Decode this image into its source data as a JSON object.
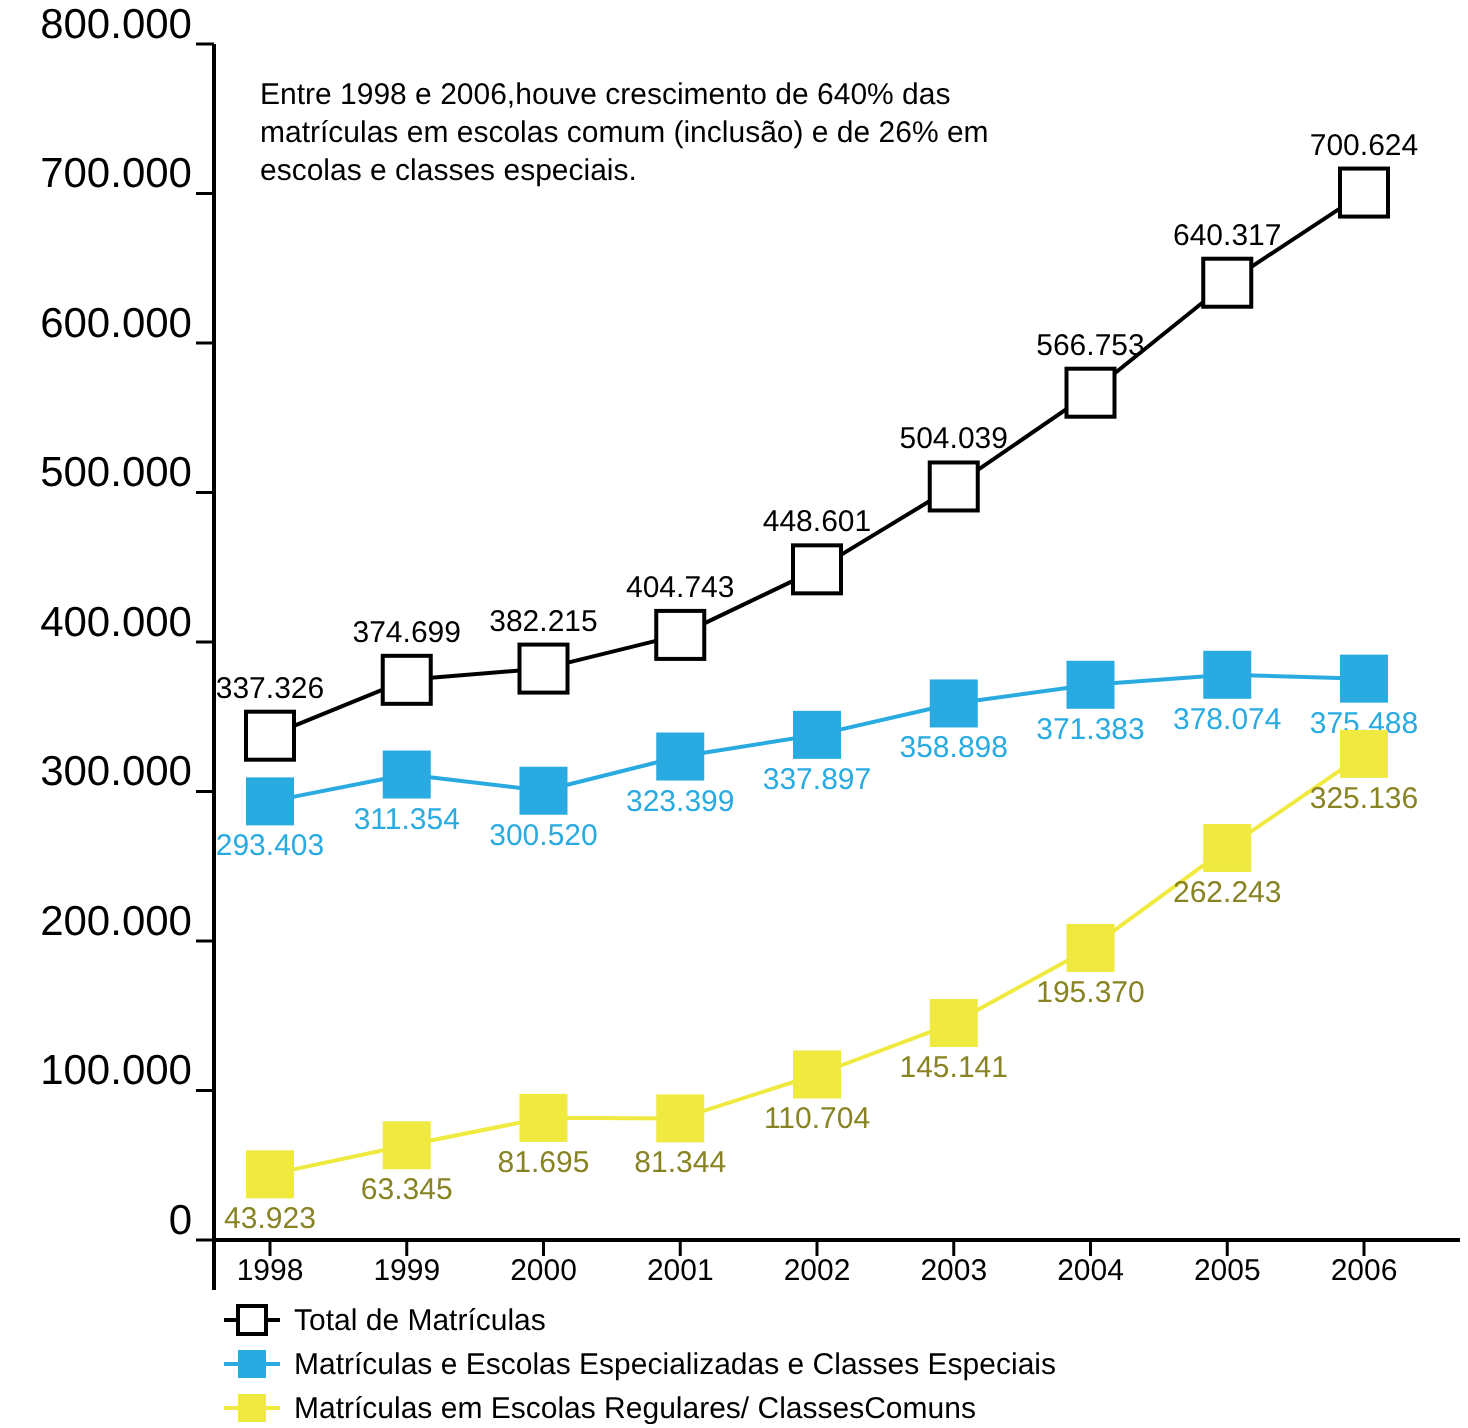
{
  "chart_data": {
    "type": "line",
    "categories": [
      "1998",
      "1999",
      "2000",
      "2001",
      "2002",
      "2003",
      "2004",
      "2005",
      "2006"
    ],
    "ylim": [
      0,
      800000
    ],
    "yticks": [
      {
        "value": 0,
        "label": "0"
      },
      {
        "value": 100000,
        "label": "100.000"
      },
      {
        "value": 200000,
        "label": "200.000"
      },
      {
        "value": 300000,
        "label": "300.000"
      },
      {
        "value": 400000,
        "label": "400.000"
      },
      {
        "value": 500000,
        "label": "500.000"
      },
      {
        "value": 600000,
        "label": "600.000"
      },
      {
        "value": 700000,
        "label": "700.000"
      },
      {
        "value": 800000,
        "label": "800.000"
      }
    ],
    "marker": "square",
    "legend": "bottom",
    "grid": false,
    "annotations": [
      "Entre 1998 e 2006,houve crescimento de 640% das matrículas em escolas comum (inclusão) e de 26% em escolas e classes especiais."
    ],
    "series": [
      {
        "name": "Total de Matrículas",
        "color": "#000000",
        "values": [
          337326,
          374699,
          382215,
          404743,
          448601,
          504039,
          566753,
          640317,
          700624
        ],
        "value_labels": [
          "337.326",
          "374.699",
          "382.215",
          "404.743",
          "448.601",
          "504.039",
          "566.753",
          "640.317",
          "700.624"
        ]
      },
      {
        "name": "Matrículas e Escolas Especializadas e Classes Especiais",
        "color": "#29abe2",
        "values": [
          293403,
          311354,
          300520,
          323399,
          337897,
          358898,
          371383,
          378074,
          375488
        ],
        "value_labels": [
          "293.403",
          "311.354",
          "300.520",
          "323.399",
          "337.897",
          "358.898",
          "371.383",
          "378.074",
          "375.488"
        ]
      },
      {
        "name": "Matrículas em Escolas Regulares/ ClassesComuns",
        "color": "#f0e940",
        "values": [
          43923,
          63345,
          81695,
          81344,
          110704,
          145141,
          195370,
          262243,
          325136
        ],
        "value_labels": [
          "43.923",
          "63.345",
          "81.695",
          "81.344",
          "110.704",
          "145.141",
          "195.370",
          "262.243",
          "325.136"
        ]
      }
    ]
  }
}
